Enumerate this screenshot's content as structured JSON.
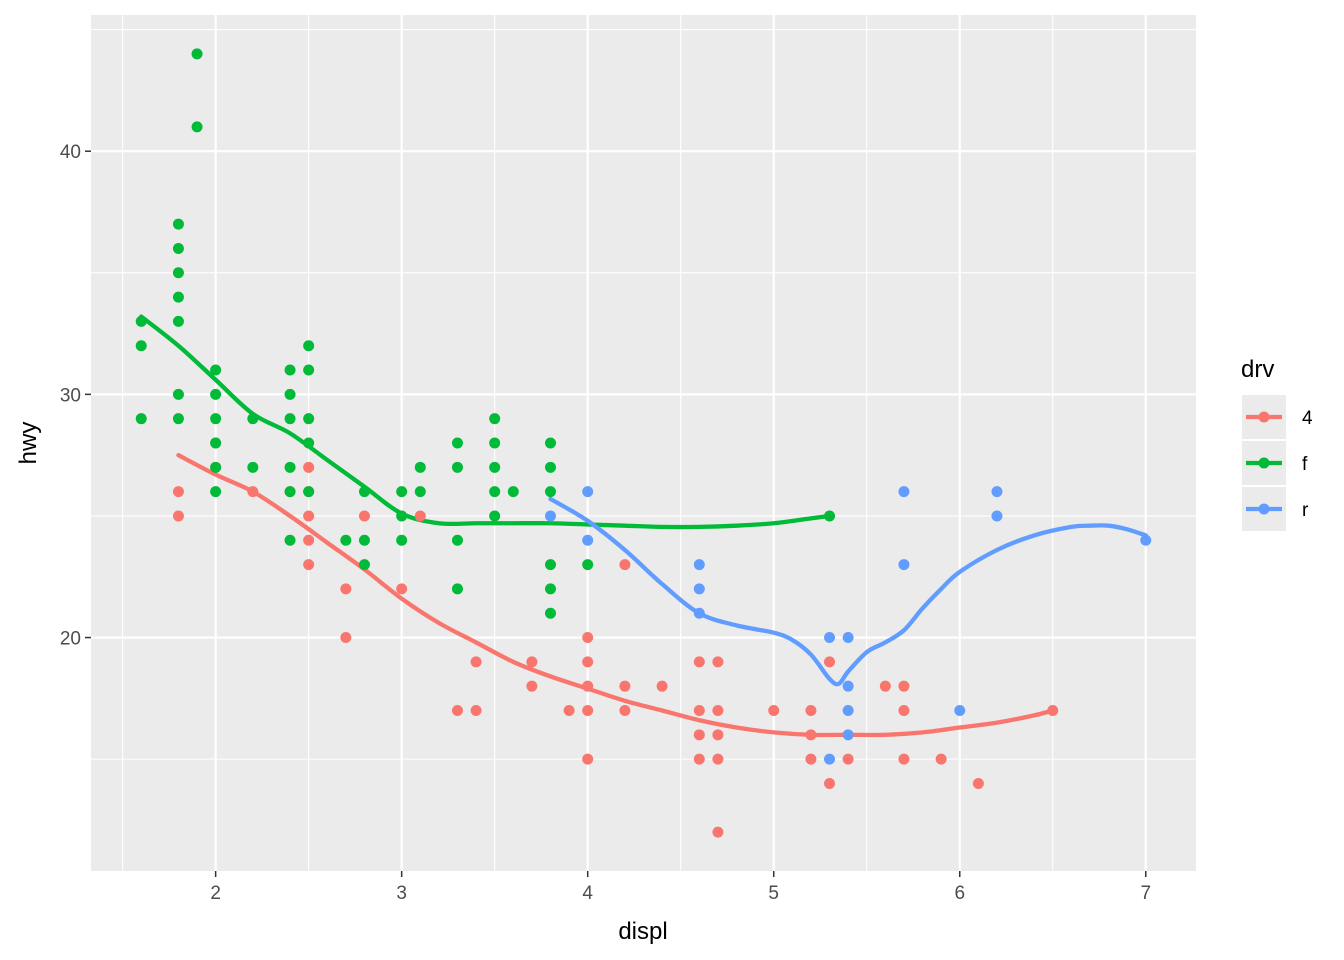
{
  "chart_data": {
    "type": "scatter",
    "title": "",
    "xlabel": "displ",
    "ylabel": "hwy",
    "xlim": [
      1.33,
      7.27
    ],
    "ylim": [
      10.4,
      45.6
    ],
    "x_ticks": [
      2,
      3,
      4,
      5,
      6,
      7
    ],
    "x_tick_labels": [
      "2",
      "3",
      "4",
      "5",
      "6",
      "7"
    ],
    "y_ticks": [
      20,
      30,
      40
    ],
    "y_tick_labels": [
      "20",
      "30",
      "40"
    ],
    "grid": true,
    "legend": {
      "title": "drv",
      "placement": "right"
    },
    "series": [
      {
        "name": "4",
        "color": "#F8766D",
        "points": [
          [
            1.8,
            26
          ],
          [
            1.8,
            25
          ],
          [
            2.0,
            28
          ],
          [
            2.0,
            27
          ],
          [
            2.2,
            26
          ],
          [
            2.4,
            26
          ],
          [
            2.5,
            27
          ],
          [
            2.5,
            26
          ],
          [
            2.5,
            25
          ],
          [
            2.5,
            24
          ],
          [
            2.5,
            23
          ],
          [
            2.7,
            22
          ],
          [
            2.7,
            20
          ],
          [
            2.8,
            25
          ],
          [
            3.0,
            22
          ],
          [
            3.1,
            25
          ],
          [
            3.3,
            17
          ],
          [
            3.4,
            19
          ],
          [
            3.4,
            17
          ],
          [
            3.7,
            19
          ],
          [
            3.7,
            18
          ],
          [
            3.9,
            17
          ],
          [
            4.0,
            20
          ],
          [
            4.0,
            19
          ],
          [
            4.0,
            18
          ],
          [
            4.0,
            17
          ],
          [
            4.0,
            15
          ],
          [
            4.2,
            23
          ],
          [
            4.2,
            18
          ],
          [
            4.2,
            17
          ],
          [
            4.4,
            18
          ],
          [
            4.6,
            19
          ],
          [
            4.6,
            17
          ],
          [
            4.6,
            16
          ],
          [
            4.6,
            15
          ],
          [
            4.7,
            19
          ],
          [
            4.7,
            17
          ],
          [
            4.7,
            16
          ],
          [
            4.7,
            15
          ],
          [
            4.7,
            12
          ],
          [
            5.0,
            17
          ],
          [
            5.2,
            17
          ],
          [
            5.2,
            16
          ],
          [
            5.2,
            15
          ],
          [
            5.3,
            19
          ],
          [
            5.3,
            14
          ],
          [
            5.4,
            15
          ],
          [
            5.6,
            18
          ],
          [
            5.7,
            18
          ],
          [
            5.7,
            17
          ],
          [
            5.7,
            15
          ],
          [
            5.9,
            15
          ],
          [
            6.1,
            14
          ],
          [
            6.5,
            17
          ]
        ],
        "smooth": [
          [
            1.8,
            27.5
          ],
          [
            2.0,
            26.7
          ],
          [
            2.2,
            26.0
          ],
          [
            2.4,
            25.0
          ],
          [
            2.6,
            23.9
          ],
          [
            2.8,
            22.8
          ],
          [
            3.0,
            21.6
          ],
          [
            3.2,
            20.6
          ],
          [
            3.4,
            19.8
          ],
          [
            3.6,
            19.0
          ],
          [
            3.8,
            18.4
          ],
          [
            4.0,
            17.9
          ],
          [
            4.2,
            17.4
          ],
          [
            4.4,
            17.0
          ],
          [
            4.6,
            16.6
          ],
          [
            4.8,
            16.3
          ],
          [
            5.0,
            16.1
          ],
          [
            5.2,
            16.0
          ],
          [
            5.4,
            16.0
          ],
          [
            5.6,
            16.0
          ],
          [
            5.8,
            16.1
          ],
          [
            6.0,
            16.3
          ],
          [
            6.2,
            16.5
          ],
          [
            6.4,
            16.8
          ],
          [
            6.5,
            17.0
          ]
        ]
      },
      {
        "name": "f",
        "color": "#00BA38",
        "points": [
          [
            1.6,
            33
          ],
          [
            1.6,
            32
          ],
          [
            1.6,
            29
          ],
          [
            1.8,
            37
          ],
          [
            1.8,
            36
          ],
          [
            1.8,
            35
          ],
          [
            1.8,
            34
          ],
          [
            1.8,
            33
          ],
          [
            1.8,
            30
          ],
          [
            1.8,
            29
          ],
          [
            1.9,
            44
          ],
          [
            1.9,
            41
          ],
          [
            2.0,
            31
          ],
          [
            2.0,
            30
          ],
          [
            2.0,
            29
          ],
          [
            2.0,
            28
          ],
          [
            2.0,
            27
          ],
          [
            2.0,
            26
          ],
          [
            2.2,
            29
          ],
          [
            2.2,
            27
          ],
          [
            2.4,
            31
          ],
          [
            2.4,
            30
          ],
          [
            2.4,
            29
          ],
          [
            2.4,
            27
          ],
          [
            2.4,
            26
          ],
          [
            2.4,
            24
          ],
          [
            2.5,
            32
          ],
          [
            2.5,
            31
          ],
          [
            2.5,
            29
          ],
          [
            2.5,
            28
          ],
          [
            2.5,
            26
          ],
          [
            2.7,
            24
          ],
          [
            2.8,
            26
          ],
          [
            2.8,
            24
          ],
          [
            2.8,
            23
          ],
          [
            3.0,
            26
          ],
          [
            3.0,
            25
          ],
          [
            3.0,
            24
          ],
          [
            3.1,
            27
          ],
          [
            3.1,
            26
          ],
          [
            3.3,
            28
          ],
          [
            3.3,
            27
          ],
          [
            3.3,
            24
          ],
          [
            3.3,
            22
          ],
          [
            3.5,
            29
          ],
          [
            3.5,
            28
          ],
          [
            3.5,
            27
          ],
          [
            3.5,
            26
          ],
          [
            3.5,
            25
          ],
          [
            3.6,
            26
          ],
          [
            3.8,
            28
          ],
          [
            3.8,
            27
          ],
          [
            3.8,
            26
          ],
          [
            3.8,
            23
          ],
          [
            3.8,
            22
          ],
          [
            3.8,
            21
          ],
          [
            4.0,
            23
          ],
          [
            5.3,
            25
          ]
        ],
        "smooth": [
          [
            1.6,
            33.2
          ],
          [
            1.8,
            32.0
          ],
          [
            2.0,
            30.6
          ],
          [
            2.2,
            29.2
          ],
          [
            2.4,
            28.4
          ],
          [
            2.6,
            27.3
          ],
          [
            2.8,
            26.2
          ],
          [
            3.0,
            25.1
          ],
          [
            3.2,
            24.7
          ],
          [
            3.4,
            24.7
          ],
          [
            3.6,
            24.7
          ],
          [
            3.8,
            24.7
          ],
          [
            4.0,
            24.65
          ],
          [
            4.2,
            24.6
          ],
          [
            4.4,
            24.55
          ],
          [
            4.6,
            24.55
          ],
          [
            4.8,
            24.6
          ],
          [
            5.0,
            24.7
          ],
          [
            5.2,
            24.9
          ],
          [
            5.3,
            25.0
          ]
        ]
      },
      {
        "name": "r",
        "color": "#619CFF",
        "points": [
          [
            3.8,
            25
          ],
          [
            4.0,
            26
          ],
          [
            4.0,
            24
          ],
          [
            4.6,
            23
          ],
          [
            4.6,
            22
          ],
          [
            4.6,
            21
          ],
          [
            5.3,
            20
          ],
          [
            5.3,
            15
          ],
          [
            5.4,
            20
          ],
          [
            5.4,
            18
          ],
          [
            5.4,
            17
          ],
          [
            5.4,
            16
          ],
          [
            5.7,
            26
          ],
          [
            5.7,
            23
          ],
          [
            6.0,
            17
          ],
          [
            6.2,
            26
          ],
          [
            6.2,
            25
          ],
          [
            7.0,
            24
          ]
        ],
        "smooth": [
          [
            3.8,
            25.7
          ],
          [
            4.0,
            24.8
          ],
          [
            4.2,
            23.6
          ],
          [
            4.4,
            22.2
          ],
          [
            4.6,
            21.0
          ],
          [
            4.8,
            20.5
          ],
          [
            5.0,
            20.2
          ],
          [
            5.1,
            19.9
          ],
          [
            5.2,
            19.3
          ],
          [
            5.3,
            18.3
          ],
          [
            5.35,
            18.1
          ],
          [
            5.4,
            18.6
          ],
          [
            5.5,
            19.4
          ],
          [
            5.6,
            19.8
          ],
          [
            5.7,
            20.3
          ],
          [
            5.8,
            21.2
          ],
          [
            5.9,
            22.0
          ],
          [
            6.0,
            22.7
          ],
          [
            6.2,
            23.6
          ],
          [
            6.4,
            24.2
          ],
          [
            6.6,
            24.55
          ],
          [
            6.7,
            24.6
          ],
          [
            6.8,
            24.6
          ],
          [
            6.9,
            24.45
          ],
          [
            7.0,
            24.2
          ]
        ]
      }
    ]
  }
}
